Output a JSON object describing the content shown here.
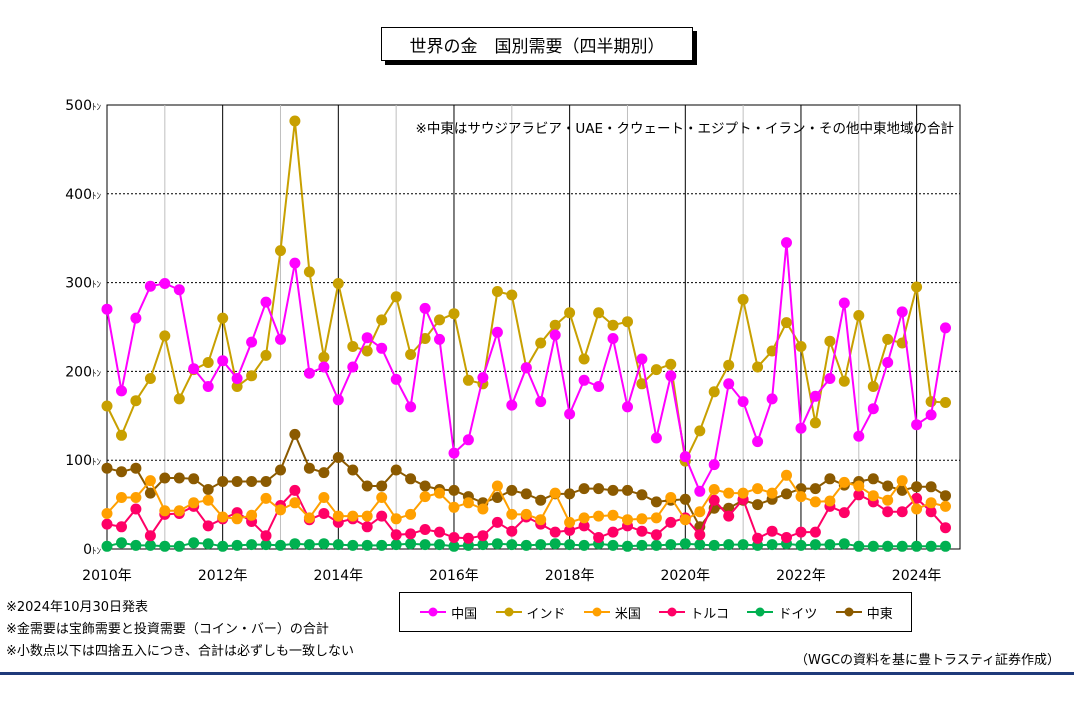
{
  "chart_data": {
    "type": "line",
    "title": "世界の金　国別需要（四半期別）",
    "annotation": "※中東はサウジアラビア・UAE・クウェート・エジプト・イラン・その他中東地域の合計",
    "y_unit": "ﾄﾝ",
    "ylim": [
      0,
      500
    ],
    "yticks": [
      0,
      100,
      200,
      300,
      400,
      500
    ],
    "xlim": [
      2010,
      2024.75
    ],
    "xticks": [
      {
        "value": 2010,
        "label": "2010年"
      },
      {
        "value": 2012,
        "label": "2012年"
      },
      {
        "value": 2014,
        "label": "2014年"
      },
      {
        "value": 2016,
        "label": "2016年"
      },
      {
        "value": 2018,
        "label": "2018年"
      },
      {
        "value": 2020,
        "label": "2020年"
      },
      {
        "value": 2022,
        "label": "2022年"
      },
      {
        "value": 2024,
        "label": "2024年"
      }
    ],
    "grid": true,
    "legend_position": "bottom",
    "start_year": 2010,
    "series": [
      {
        "name": "中国",
        "color": "#ff00ff",
        "values": [
          270,
          178,
          260,
          296,
          299,
          292,
          203,
          183,
          212,
          192,
          233,
          278,
          236,
          322,
          198,
          205,
          168,
          205,
          238,
          226,
          191,
          160,
          271,
          236,
          108,
          123,
          193,
          244,
          162,
          204,
          166,
          241,
          152,
          190,
          183,
          237,
          160,
          214,
          125,
          195,
          104,
          65,
          95,
          186,
          166,
          121,
          169,
          345,
          136,
          172,
          192,
          277,
          127,
          158,
          210,
          267,
          140,
          151,
          249
        ]
      },
      {
        "name": "インド",
        "color": "#c8a000",
        "values": [
          161,
          128,
          167,
          192,
          240,
          169,
          202,
          210,
          260,
          183,
          195,
          218,
          336,
          482,
          312,
          216,
          299,
          228,
          223,
          258,
          284,
          219,
          237,
          258,
          265,
          190,
          186,
          290,
          286,
          204,
          232,
          252,
          266,
          214,
          266,
          252,
          256,
          186,
          202,
          208,
          99,
          133,
          177,
          207,
          281,
          205,
          223,
          255,
          228,
          142,
          234,
          189,
          263,
          183,
          236,
          232,
          295,
          166,
          165
        ]
      },
      {
        "name": "米国",
        "color": "#ffa000",
        "values": [
          40,
          58,
          58,
          77,
          43,
          43,
          52,
          55,
          36,
          34,
          38,
          57,
          44,
          52,
          35,
          58,
          37,
          37,
          37,
          58,
          34,
          39,
          59,
          63,
          47,
          52,
          45,
          71,
          39,
          39,
          33,
          63,
          30,
          35,
          37,
          38,
          33,
          34,
          35,
          58,
          33,
          42,
          67,
          63,
          63,
          68,
          63,
          83,
          59,
          53,
          54,
          75,
          71,
          60,
          55,
          77,
          45,
          52,
          48
        ]
      },
      {
        "name": "トルコ",
        "color": "#ff0066",
        "values": [
          28,
          25,
          45,
          15,
          39,
          40,
          48,
          26,
          34,
          41,
          31,
          15,
          49,
          66,
          33,
          40,
          30,
          34,
          25,
          37,
          16,
          17,
          22,
          19,
          13,
          12,
          15,
          30,
          20,
          36,
          28,
          19,
          21,
          26,
          13,
          19,
          26,
          20,
          16,
          30,
          35,
          16,
          55,
          37,
          56,
          12,
          20,
          13,
          19,
          19,
          48,
          41,
          61,
          53,
          42,
          42,
          57,
          42,
          24
        ]
      },
      {
        "name": "ドイツ",
        "color": "#00b050",
        "values": [
          3,
          7,
          4,
          4,
          3,
          3,
          7,
          6,
          3,
          4,
          5,
          5,
          4,
          6,
          5,
          6,
          5,
          4,
          4,
          4,
          5,
          6,
          5,
          5,
          3,
          4,
          5,
          6,
          5,
          4,
          5,
          6,
          5,
          4,
          6,
          4,
          3,
          4,
          4,
          5,
          6,
          5,
          4,
          5,
          5,
          4,
          5,
          6,
          4,
          5,
          5,
          6,
          3,
          3,
          3,
          3,
          3,
          3,
          3
        ]
      },
      {
        "name": "中東",
        "color": "#8b5a00",
        "values": [
          91,
          87,
          91,
          63,
          80,
          80,
          79,
          67,
          76,
          76,
          76,
          76,
          89,
          129,
          91,
          86,
          103,
          89,
          71,
          71,
          89,
          79,
          71,
          67,
          66,
          59,
          52,
          58,
          66,
          62,
          55,
          62,
          62,
          68,
          68,
          66,
          66,
          61,
          53,
          55,
          56,
          25,
          46,
          46,
          55,
          50,
          56,
          62,
          68,
          68,
          79,
          72,
          76,
          79,
          71,
          66,
          70,
          70,
          60
        ]
      }
    ]
  },
  "notes": [
    "※2024年10月30日発表",
    "※金需要は宝飾需要と投資需要（コイン・バー）の合計",
    "※小数点以下は四捨五入につき、合計は必ずしも一致しない"
  ],
  "credit": "（WGCの資料を基に豊トラスティ証券作成）"
}
